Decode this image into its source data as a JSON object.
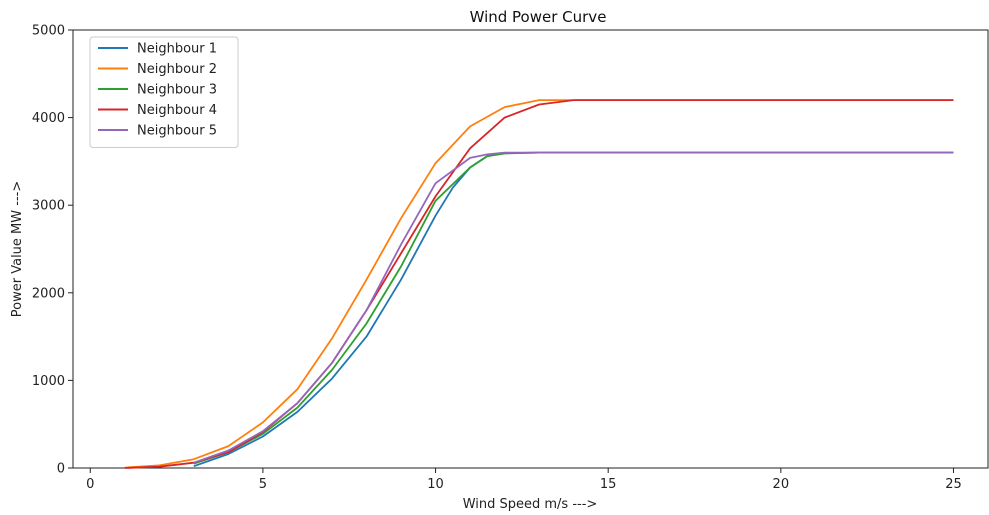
{
  "chart_data": {
    "type": "line",
    "title": "Wind Power Curve",
    "xlabel": "Wind Speed m/s --->",
    "ylabel": "Power Value MW --->",
    "xlim": [
      -0.5,
      26
    ],
    "ylim": [
      0,
      5000
    ],
    "xticks": [
      0,
      5,
      10,
      15,
      20,
      25
    ],
    "yticks": [
      0,
      1000,
      2000,
      3000,
      4000,
      5000
    ],
    "grid": false,
    "legend_position": "top-left",
    "series": [
      {
        "name": "Neighbour 1",
        "color": "#1f77b4",
        "x": [
          3,
          4,
          5,
          6,
          7,
          8,
          9,
          10,
          10.5,
          11,
          11.5,
          12,
          13,
          14,
          15,
          20,
          25
        ],
        "y": [
          20,
          160,
          360,
          640,
          1020,
          1500,
          2150,
          2880,
          3200,
          3430,
          3560,
          3595,
          3600,
          3600,
          3600,
          3600,
          3600
        ]
      },
      {
        "name": "Neighbour 2",
        "color": "#ff7f0e",
        "x": [
          1,
          2,
          3,
          4,
          5,
          6,
          7,
          8,
          9,
          10,
          11,
          12,
          13,
          14,
          15,
          20,
          25
        ],
        "y": [
          5,
          30,
          100,
          250,
          520,
          900,
          1480,
          2150,
          2850,
          3480,
          3900,
          4120,
          4200,
          4200,
          4200,
          4200,
          4200
        ]
      },
      {
        "name": "Neighbour 3",
        "color": "#2ca02c",
        "x": [
          3,
          4,
          5,
          6,
          7,
          8,
          9,
          10,
          11,
          11.5,
          12,
          13,
          14,
          15,
          20,
          25
        ],
        "y": [
          50,
          180,
          390,
          690,
          1120,
          1650,
          2300,
          3050,
          3430,
          3560,
          3590,
          3600,
          3600,
          3600,
          3600,
          3600
        ]
      },
      {
        "name": "Neighbour 4",
        "color": "#d62728",
        "x": [
          1,
          2,
          3,
          4,
          5,
          6,
          7,
          8,
          9,
          10,
          11,
          12,
          13,
          14,
          15,
          20,
          25
        ],
        "y": [
          0,
          15,
          60,
          180,
          410,
          740,
          1200,
          1800,
          2450,
          3100,
          3650,
          4000,
          4150,
          4200,
          4200,
          4200,
          4200
        ]
      },
      {
        "name": "Neighbour 5",
        "color": "#9467bd",
        "x": [
          3,
          4,
          5,
          6,
          7,
          8,
          9,
          10,
          11,
          11.5,
          12,
          13,
          14,
          15,
          20,
          25
        ],
        "y": [
          60,
          200,
          420,
          740,
          1200,
          1800,
          2550,
          3250,
          3540,
          3580,
          3600,
          3600,
          3600,
          3600,
          3600,
          3600
        ]
      }
    ]
  }
}
